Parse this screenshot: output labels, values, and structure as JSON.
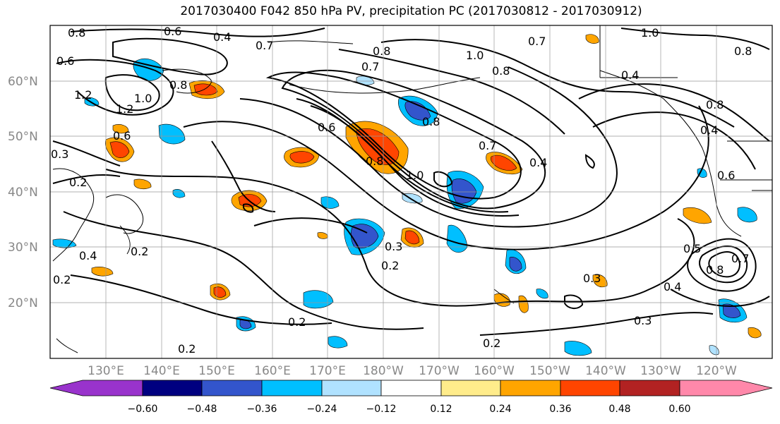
{
  "title": "2017030400 F042 850 hPa PV, precipitation PC (2017030812 - 2017030912)",
  "map": {
    "lat_labels": [
      "60°N",
      "50°N",
      "40°N",
      "30°N",
      "20°N"
    ],
    "lon_labels": [
      "130°E",
      "140°E",
      "150°E",
      "160°E",
      "170°E",
      "180°W",
      "170°W",
      "160°W",
      "150°W",
      "140°W",
      "130°W",
      "120°W"
    ],
    "contour_labels": [
      "0.8",
      "0.6",
      "0.6",
      "0.4",
      "0.7",
      "0.8",
      "0.7",
      "1.0",
      "0.8",
      "0.7",
      "0.8",
      "1.0",
      "0.8",
      "0.4",
      "0.8",
      "1.2",
      "1.0",
      "1.2",
      "0.6",
      "0.8",
      "0.6",
      "0.8",
      "1.0",
      "0.7",
      "0.4",
      "0.3",
      "0.2",
      "0.2",
      "0.4",
      "0.2",
      "0.3",
      "0.2",
      "0.2",
      "0.3",
      "0.2",
      "0.2",
      "0.3",
      "0.5",
      "0.8",
      "0.7",
      "0.4",
      "0.6",
      "0.4"
    ]
  },
  "colorbar": {
    "ticks": [
      "−0.60",
      "−0.48",
      "−0.36",
      "−0.24",
      "−0.12",
      "0.12",
      "0.24",
      "0.36",
      "0.48",
      "0.60"
    ],
    "colors": [
      "#9933cc",
      "#000080",
      "#3355cc",
      "#00bfff",
      "#b0e2ff",
      "#ffffff",
      "#ffec8b",
      "#ffa500",
      "#ff4500",
      "#b22222",
      "#ff88aa"
    ]
  }
}
